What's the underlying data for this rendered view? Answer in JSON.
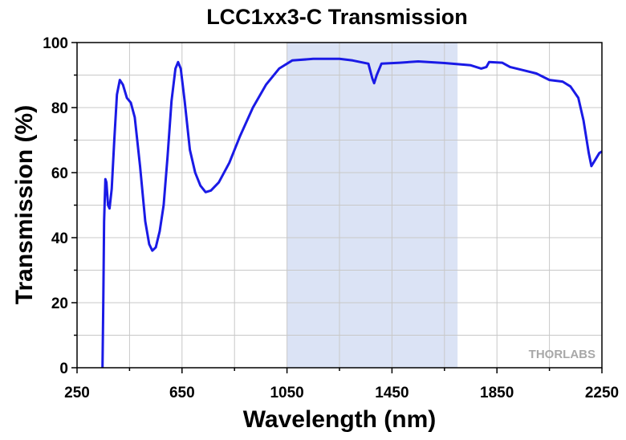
{
  "chart_data": {
    "type": "line",
    "title": "LCC1xx3-C Transmission",
    "x_label": "Wavelength (nm)",
    "y_label": "Transmission (%)",
    "watermark": "THORLABS",
    "xlim": [
      250,
      2250
    ],
    "ylim": [
      0,
      100
    ],
    "xticks": [
      250,
      650,
      1050,
      1450,
      1850,
      2250
    ],
    "yticks": [
      0,
      20,
      40,
      60,
      80,
      100
    ],
    "xminor": [
      450,
      850,
      1250,
      1650,
      2050
    ],
    "yminor": [
      10,
      30,
      50,
      70,
      90
    ],
    "grid": true,
    "shaded_range": {
      "x": [
        1050,
        1700
      ],
      "color": "#dbe3f5"
    },
    "x": [
      347,
      350,
      353,
      358,
      362,
      368,
      374,
      382,
      392,
      402,
      413,
      425,
      440,
      455,
      470,
      490,
      510,
      525,
      537,
      550,
      565,
      580,
      595,
      610,
      625,
      635,
      645,
      660,
      680,
      700,
      720,
      740,
      760,
      790,
      830,
      870,
      920,
      970,
      1020,
      1070,
      1150,
      1250,
      1300,
      1360,
      1375,
      1382,
      1392,
      1410,
      1480,
      1550,
      1650,
      1750,
      1790,
      1810,
      1820,
      1870,
      1900,
      1950,
      2000,
      2050,
      2100,
      2130,
      2160,
      2180,
      2200,
      2210,
      2225,
      2240,
      2250
    ],
    "series": [
      {
        "name": "Transmission",
        "color": "#1a1ae6",
        "values": [
          0,
          20,
          45,
          58,
          57,
          50,
          49,
          55,
          70,
          84,
          88.5,
          87,
          83,
          81.5,
          77,
          62,
          45,
          38,
          36,
          37,
          42,
          50,
          65,
          82,
          92,
          94,
          92,
          82,
          67,
          60,
          56,
          54,
          54.5,
          57,
          63,
          71,
          80,
          87,
          92,
          94.5,
          95,
          95,
          94.5,
          93.5,
          89,
          87.5,
          90,
          93.5,
          93.8,
          94.2,
          93.7,
          93,
          92,
          92.5,
          94,
          93.8,
          92.5,
          91.5,
          90.5,
          88.5,
          88,
          86.5,
          83,
          76,
          66,
          62,
          64,
          66,
          66.5
        ]
      }
    ]
  }
}
